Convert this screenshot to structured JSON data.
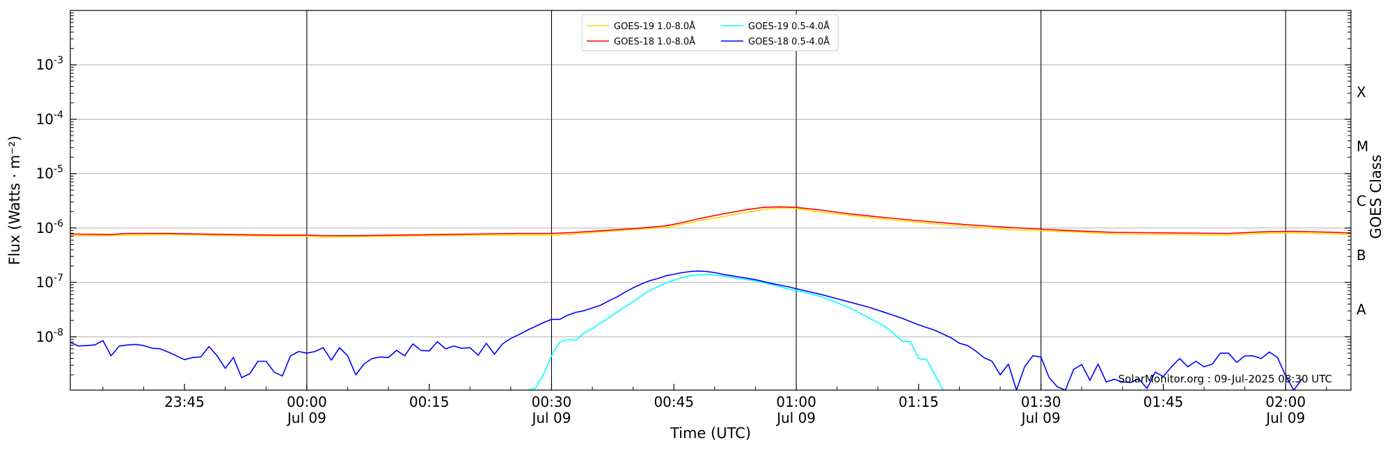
{
  "chart_data": {
    "type": "line",
    "xlabel": "Time (UTC)",
    "ylabel": "Flux (Watts · m⁻²)",
    "right_axis_label": "GOES Class",
    "credit": "SolarMonitor.org : 09-Jul-2025 08:30 UTC",
    "x_unit": "minutes since 23:31 UTC, 08-Jul-2025",
    "xlim": [
      0,
      157
    ],
    "y_scale": "log",
    "ylim_log10": [
      -8.98,
      -2.0
    ],
    "grid": "horizontal",
    "legend_position": "top-center",
    "x_ticks": [
      {
        "t": 14,
        "top": "23:45",
        "bottom": ""
      },
      {
        "t": 29,
        "top": "00:00",
        "bottom": "Jul 09",
        "major": true
      },
      {
        "t": 44,
        "top": "00:15",
        "bottom": ""
      },
      {
        "t": 59,
        "top": "00:30",
        "bottom": "Jul 09",
        "major": true
      },
      {
        "t": 74,
        "top": "00:45",
        "bottom": ""
      },
      {
        "t": 89,
        "top": "01:00",
        "bottom": "Jul 09",
        "major": true
      },
      {
        "t": 104,
        "top": "01:15",
        "bottom": ""
      },
      {
        "t": 119,
        "top": "01:30",
        "bottom": "Jul 09",
        "major": true
      },
      {
        "t": 134,
        "top": "01:45",
        "bottom": ""
      },
      {
        "t": 149,
        "top": "02:00",
        "bottom": "Jul 09",
        "major": true
      }
    ],
    "y_ticks": [
      {
        "exp": -8,
        "label": "-8"
      },
      {
        "exp": -7,
        "label": "-7"
      },
      {
        "exp": -6,
        "label": "-6"
      },
      {
        "exp": -5,
        "label": "-5"
      },
      {
        "exp": -4,
        "label": "-4"
      },
      {
        "exp": -3,
        "label": "-3"
      }
    ],
    "goes_classes": [
      {
        "label": "A",
        "exp": -7.5
      },
      {
        "label": "B",
        "exp": -6.5
      },
      {
        "label": "C",
        "exp": -5.5
      },
      {
        "label": "M",
        "exp": -4.5
      },
      {
        "label": "X",
        "exp": -3.5
      }
    ],
    "series": [
      {
        "name": "GOES-19 1.0-8.0Å",
        "color": "#ffd700",
        "points": [
          [
            0,
            -6.14
          ],
          [
            5,
            -6.14
          ],
          [
            7,
            -6.13
          ],
          [
            12,
            -6.12
          ],
          [
            20,
            -6.14
          ],
          [
            25,
            -6.15
          ],
          [
            29,
            -6.15
          ],
          [
            31,
            -6.17
          ],
          [
            35,
            -6.16
          ],
          [
            40,
            -6.15
          ],
          [
            45,
            -6.14
          ],
          [
            50,
            -6.13
          ],
          [
            55,
            -6.13
          ],
          [
            59,
            -6.13
          ],
          [
            62,
            -6.11
          ],
          [
            65,
            -6.07
          ],
          [
            68,
            -6.04
          ],
          [
            70,
            -6.02
          ],
          [
            73,
            -5.99
          ],
          [
            75,
            -5.93
          ],
          [
            77,
            -5.87
          ],
          [
            80,
            -5.79
          ],
          [
            83,
            -5.71
          ],
          [
            85,
            -5.66
          ],
          [
            87,
            -5.63
          ],
          [
            89,
            -5.64
          ],
          [
            92,
            -5.71
          ],
          [
            95,
            -5.76
          ],
          [
            100,
            -5.84
          ],
          [
            105,
            -5.91
          ],
          [
            110,
            -5.97
          ],
          [
            115,
            -6.03
          ],
          [
            119,
            -6.05
          ],
          [
            123,
            -6.07
          ],
          [
            128,
            -6.11
          ],
          [
            135,
            -6.12
          ],
          [
            142,
            -6.13
          ],
          [
            146,
            -6.1
          ],
          [
            150,
            -6.09
          ],
          [
            155,
            -6.11
          ],
          [
            157,
            -6.12
          ]
        ]
      },
      {
        "name": "GOES-18 1.0-8.0Å",
        "color": "#ff0000",
        "points": [
          [
            0,
            -6.11
          ],
          [
            5,
            -6.12
          ],
          [
            7,
            -6.1
          ],
          [
            12,
            -6.1
          ],
          [
            20,
            -6.12
          ],
          [
            25,
            -6.13
          ],
          [
            29,
            -6.13
          ],
          [
            31,
            -6.14
          ],
          [
            35,
            -6.14
          ],
          [
            40,
            -6.13
          ],
          [
            45,
            -6.12
          ],
          [
            50,
            -6.11
          ],
          [
            55,
            -6.1
          ],
          [
            59,
            -6.1
          ],
          [
            62,
            -6.08
          ],
          [
            65,
            -6.05
          ],
          [
            68,
            -6.02
          ],
          [
            70,
            -6
          ],
          [
            73,
            -5.96
          ],
          [
            75,
            -5.9
          ],
          [
            77,
            -5.83
          ],
          [
            80,
            -5.74
          ],
          [
            83,
            -5.66
          ],
          [
            85,
            -5.62
          ],
          [
            87,
            -5.61
          ],
          [
            89,
            -5.62
          ],
          [
            92,
            -5.67
          ],
          [
            95,
            -5.73
          ],
          [
            100,
            -5.81
          ],
          [
            105,
            -5.88
          ],
          [
            110,
            -5.94
          ],
          [
            115,
            -5.99
          ],
          [
            119,
            -6.02
          ],
          [
            123,
            -6.05
          ],
          [
            128,
            -6.08
          ],
          [
            135,
            -6.09
          ],
          [
            142,
            -6.1
          ],
          [
            146,
            -6.07
          ],
          [
            150,
            -6.06
          ],
          [
            155,
            -6.08
          ],
          [
            157,
            -6.09
          ]
        ]
      },
      {
        "name": "GOES-19 0.5-4.0Å",
        "color": "#00ffff",
        "points": [
          [
            56,
            -8.98
          ],
          [
            57,
            -8.95
          ],
          [
            58,
            -8.7
          ],
          [
            59,
            -8.35
          ],
          [
            60,
            -8.1
          ],
          [
            61,
            -8.05
          ],
          [
            62,
            -8.06
          ],
          [
            63,
            -7.93
          ],
          [
            64,
            -7.85
          ],
          [
            65,
            -7.75
          ],
          [
            66,
            -7.65
          ],
          [
            67,
            -7.55
          ],
          [
            68,
            -7.45
          ],
          [
            69,
            -7.35
          ],
          [
            70,
            -7.25
          ],
          [
            71,
            -7.15
          ],
          [
            72,
            -7.08
          ],
          [
            73,
            -7.01
          ],
          [
            74,
            -6.96
          ],
          [
            75,
            -6.91
          ],
          [
            76,
            -6.88
          ],
          [
            77,
            -6.86
          ],
          [
            78,
            -6.85
          ],
          [
            80,
            -6.88
          ],
          [
            82,
            -6.93
          ],
          [
            84,
            -6.97
          ],
          [
            86,
            -7.04
          ],
          [
            88,
            -7.12
          ],
          [
            90,
            -7.18
          ],
          [
            92,
            -7.26
          ],
          [
            94,
            -7.37
          ],
          [
            96,
            -7.5
          ],
          [
            98,
            -7.66
          ],
          [
            100,
            -7.82
          ],
          [
            102,
            -8.08
          ],
          [
            103,
            -8.09
          ],
          [
            104,
            -8.4
          ],
          [
            105,
            -8.42
          ],
          [
            107,
            -8.98
          ]
        ]
      },
      {
        "name": "GOES-18 0.5-4.0Å",
        "color": "#0000ff",
        "points": [
          [
            0,
            -8.1
          ],
          [
            1,
            -8.17
          ],
          [
            2,
            -8.16
          ],
          [
            3,
            -8.15
          ],
          [
            4,
            -8.07
          ],
          [
            5,
            -8.35
          ],
          [
            6,
            -8.17
          ],
          [
            7,
            -8.15
          ],
          [
            8,
            -8.14
          ],
          [
            9,
            -8.16
          ],
          [
            10,
            -8.21
          ],
          [
            11,
            -8.22
          ],
          [
            12,
            -8.28
          ],
          [
            13,
            -8.35
          ],
          [
            14,
            -8.42
          ],
          [
            15,
            -8.38
          ],
          [
            16,
            -8.37
          ],
          [
            17,
            -8.18
          ],
          [
            18,
            -8.35
          ],
          [
            19,
            -8.58
          ],
          [
            20,
            -8.38
          ],
          [
            21,
            -8.75
          ],
          [
            22,
            -8.68
          ],
          [
            23,
            -8.45
          ],
          [
            24,
            -8.45
          ],
          [
            25,
            -8.65
          ],
          [
            26,
            -8.72
          ],
          [
            27,
            -8.35
          ],
          [
            28,
            -8.27
          ],
          [
            29,
            -8.3
          ],
          [
            30,
            -8.27
          ],
          [
            31,
            -8.2
          ],
          [
            32,
            -8.43
          ],
          [
            33,
            -8.2
          ],
          [
            34,
            -8.35
          ],
          [
            35,
            -8.7
          ],
          [
            36,
            -8.5
          ],
          [
            37,
            -8.4
          ],
          [
            38,
            -8.37
          ],
          [
            39,
            -8.38
          ],
          [
            40,
            -8.25
          ],
          [
            41,
            -8.35
          ],
          [
            42,
            -8.13
          ],
          [
            43,
            -8.25
          ],
          [
            44,
            -8.26
          ],
          [
            45,
            -8.09
          ],
          [
            46,
            -8.22
          ],
          [
            47,
            -8.17
          ],
          [
            48,
            -8.21
          ],
          [
            49,
            -8.2
          ],
          [
            50,
            -8.34
          ],
          [
            51,
            -8.12
          ],
          [
            52,
            -8.32
          ],
          [
            53,
            -8.13
          ],
          [
            54,
            -8.03
          ],
          [
            55,
            -7.96
          ],
          [
            56,
            -7.88
          ],
          [
            57,
            -7.81
          ],
          [
            58,
            -7.74
          ],
          [
            59,
            -7.68
          ],
          [
            60,
            -7.68
          ],
          [
            61,
            -7.6
          ],
          [
            62,
            -7.55
          ],
          [
            63,
            -7.52
          ],
          [
            64,
            -7.47
          ],
          [
            65,
            -7.42
          ],
          [
            66,
            -7.34
          ],
          [
            67,
            -7.27
          ],
          [
            68,
            -7.18
          ],
          [
            69,
            -7.1
          ],
          [
            70,
            -7.03
          ],
          [
            71,
            -6.97
          ],
          [
            72,
            -6.93
          ],
          [
            73,
            -6.88
          ],
          [
            74,
            -6.85
          ],
          [
            75,
            -6.82
          ],
          [
            76,
            -6.8
          ],
          [
            77,
            -6.79
          ],
          [
            78,
            -6.8
          ],
          [
            79,
            -6.82
          ],
          [
            80,
            -6.85
          ],
          [
            82,
            -6.9
          ],
          [
            84,
            -6.95
          ],
          [
            86,
            -7.02
          ],
          [
            88,
            -7.08
          ],
          [
            90,
            -7.15
          ],
          [
            92,
            -7.22
          ],
          [
            94,
            -7.3
          ],
          [
            96,
            -7.38
          ],
          [
            98,
            -7.46
          ],
          [
            100,
            -7.56
          ],
          [
            102,
            -7.66
          ],
          [
            104,
            -7.78
          ],
          [
            106,
            -7.88
          ],
          [
            108,
            -8.02
          ],
          [
            109,
            -8.12
          ],
          [
            110,
            -8.16
          ],
          [
            111,
            -8.26
          ],
          [
            112,
            -8.38
          ],
          [
            113,
            -8.45
          ],
          [
            114,
            -8.7
          ],
          [
            115,
            -8.5
          ],
          [
            116,
            -8.98
          ],
          [
            117,
            -8.55
          ],
          [
            118,
            -8.35
          ],
          [
            119,
            -8.37
          ],
          [
            120,
            -8.75
          ],
          [
            121,
            -8.92
          ],
          [
            122,
            -8.98
          ],
          [
            123,
            -8.6
          ],
          [
            124,
            -8.51
          ],
          [
            125,
            -8.8
          ],
          [
            126,
            -8.5
          ],
          [
            127,
            -8.83
          ],
          [
            128,
            -8.78
          ],
          [
            129,
            -8.83
          ],
          [
            130,
            -8.84
          ],
          [
            131,
            -8.77
          ],
          [
            132,
            -8.95
          ],
          [
            133,
            -8.65
          ],
          [
            134,
            -8.73
          ],
          [
            135,
            -8.55
          ],
          [
            136,
            -8.4
          ],
          [
            137,
            -8.55
          ],
          [
            138,
            -8.45
          ],
          [
            139,
            -8.55
          ],
          [
            140,
            -8.5
          ],
          [
            141,
            -8.3
          ],
          [
            142,
            -8.3
          ],
          [
            143,
            -8.47
          ],
          [
            144,
            -8.35
          ],
          [
            145,
            -8.35
          ],
          [
            146,
            -8.4
          ],
          [
            147,
            -8.28
          ],
          [
            148,
            -8.38
          ],
          [
            149,
            -8.72
          ],
          [
            150,
            -8.98
          ],
          [
            151,
            -8.77
          ]
        ]
      }
    ]
  }
}
